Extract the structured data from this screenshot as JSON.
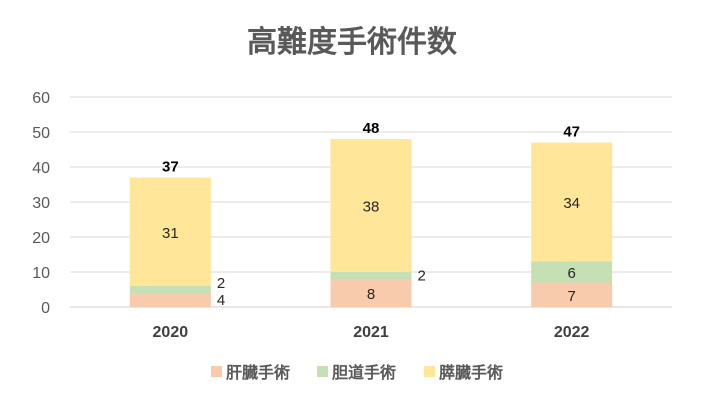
{
  "chart_data": {
    "type": "bar",
    "stacked": true,
    "title": "高難度手術件数",
    "categories": [
      "2020",
      "2021",
      "2022"
    ],
    "series": [
      {
        "name": "肝臓手術",
        "values": [
          4,
          8,
          7
        ],
        "color": "#F8CBAD"
      },
      {
        "name": "胆道手術",
        "values": [
          2,
          2,
          6
        ],
        "color": "#C5E0B4"
      },
      {
        "name": "膵臓手術",
        "values": [
          31,
          38,
          34
        ],
        "color": "#FFE699"
      }
    ],
    "totals": [
      37,
      48,
      47
    ],
    "ylim": [
      0,
      60
    ],
    "yticks": [
      0,
      10,
      20,
      30,
      40,
      50,
      60
    ],
    "grid": true,
    "legend": "bottom",
    "xlabel": "",
    "ylabel": ""
  }
}
